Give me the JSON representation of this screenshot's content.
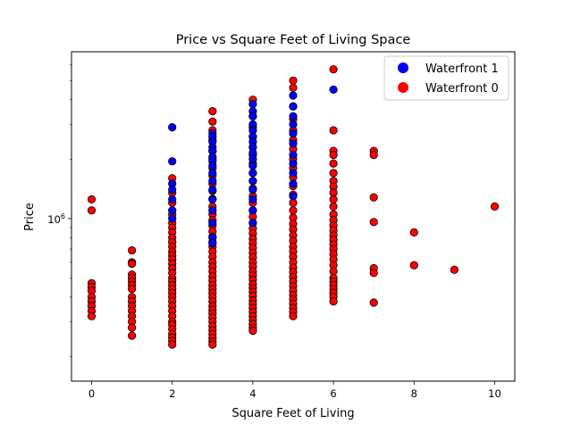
{
  "chart_data": {
    "type": "scatter",
    "title": "Price vs Square Feet of Living Space",
    "xlabel": "Square Feet of Living",
    "ylabel": "Price",
    "xlim": [
      -0.5,
      10.5
    ],
    "ylim": [
      150000,
      7000000
    ],
    "yscale": "log",
    "xticks": [
      0,
      2,
      4,
      6,
      8,
      10
    ],
    "xtick_labels": [
      "0",
      "2",
      "4",
      "6",
      "8",
      "10"
    ],
    "yticks": [
      1000000
    ],
    "ytick_base": "10",
    "ytick_exp": "6",
    "grid": false,
    "legend_position": "top-right",
    "series": [
      {
        "name": "Waterfront 1",
        "color": "#0000ff",
        "points": [
          [
            2,
            2900000
          ],
          [
            2,
            1950000
          ],
          [
            2,
            1500000
          ],
          [
            2,
            1400000
          ],
          [
            2,
            1250000
          ],
          [
            2,
            1100000
          ],
          [
            2,
            1000000
          ],
          [
            3,
            2700000
          ],
          [
            3,
            2600000
          ],
          [
            3,
            2450000
          ],
          [
            3,
            2300000
          ],
          [
            3,
            2200000
          ],
          [
            3,
            2050000
          ],
          [
            3,
            1950000
          ],
          [
            3,
            1850000
          ],
          [
            3,
            1700000
          ],
          [
            3,
            1550000
          ],
          [
            3,
            1400000
          ],
          [
            3,
            1250000
          ],
          [
            3,
            1100000
          ],
          [
            3,
            950000
          ],
          [
            3,
            800000
          ],
          [
            3,
            750000
          ],
          [
            4,
            3800000
          ],
          [
            4,
            3500000
          ],
          [
            4,
            3300000
          ],
          [
            4,
            3000000
          ],
          [
            4,
            2800000
          ],
          [
            4,
            2600000
          ],
          [
            4,
            2450000
          ],
          [
            4,
            2300000
          ],
          [
            4,
            2150000
          ],
          [
            4,
            2000000
          ],
          [
            4,
            1850000
          ],
          [
            4,
            1700000
          ],
          [
            4,
            1550000
          ],
          [
            4,
            1400000
          ],
          [
            4,
            1250000
          ],
          [
            4,
            1100000
          ],
          [
            4,
            950000
          ],
          [
            5,
            4200000
          ],
          [
            5,
            3700000
          ],
          [
            5,
            3300000
          ],
          [
            5,
            3000000
          ],
          [
            5,
            2700000
          ],
          [
            5,
            2400000
          ],
          [
            5,
            2100000
          ],
          [
            5,
            1900000
          ],
          [
            5,
            1700000
          ],
          [
            5,
            1500000
          ],
          [
            5,
            1300000
          ],
          [
            6,
            4500000
          ]
        ]
      },
      {
        "name": "Waterfront 0",
        "color": "#ff0000",
        "points": [
          [
            0,
            1250000
          ],
          [
            0,
            1100000
          ],
          [
            0,
            470000
          ],
          [
            0,
            450000
          ],
          [
            0,
            430000
          ],
          [
            0,
            400000
          ],
          [
            0,
            380000
          ],
          [
            0,
            360000
          ],
          [
            0,
            340000
          ],
          [
            0,
            320000
          ],
          [
            1,
            690000
          ],
          [
            1,
            600000
          ],
          [
            1,
            590000
          ],
          [
            1,
            520000
          ],
          [
            1,
            500000
          ],
          [
            1,
            480000
          ],
          [
            1,
            460000
          ],
          [
            1,
            440000
          ],
          [
            1,
            400000
          ],
          [
            1,
            380000
          ],
          [
            1,
            360000
          ],
          [
            1,
            340000
          ],
          [
            1,
            320000
          ],
          [
            1,
            300000
          ],
          [
            1,
            280000
          ],
          [
            1,
            255000
          ],
          [
            2,
            1600000
          ],
          [
            2,
            1350000
          ],
          [
            2,
            1200000
          ],
          [
            2,
            1050000
          ],
          [
            2,
            950000
          ],
          [
            2,
            900000
          ],
          [
            2,
            850000
          ],
          [
            2,
            800000
          ],
          [
            2,
            760000
          ],
          [
            2,
            720000
          ],
          [
            2,
            680000
          ],
          [
            2,
            650000
          ],
          [
            2,
            620000
          ],
          [
            2,
            590000
          ],
          [
            2,
            560000
          ],
          [
            2,
            530000
          ],
          [
            2,
            500000
          ],
          [
            2,
            480000
          ],
          [
            2,
            460000
          ],
          [
            2,
            440000
          ],
          [
            2,
            420000
          ],
          [
            2,
            400000
          ],
          [
            2,
            380000
          ],
          [
            2,
            360000
          ],
          [
            2,
            340000
          ],
          [
            2,
            320000
          ],
          [
            2,
            300000
          ],
          [
            2,
            290000
          ],
          [
            2,
            275000
          ],
          [
            2,
            260000
          ],
          [
            2,
            250000
          ],
          [
            2,
            240000
          ],
          [
            2,
            230000
          ],
          [
            3,
            3500000
          ],
          [
            3,
            3100000
          ],
          [
            3,
            2800000
          ],
          [
            3,
            2500000
          ],
          [
            3,
            2200000
          ],
          [
            3,
            2000000
          ],
          [
            3,
            1800000
          ],
          [
            3,
            1650000
          ],
          [
            3,
            1500000
          ],
          [
            3,
            1380000
          ],
          [
            3,
            1260000
          ],
          [
            3,
            1150000
          ],
          [
            3,
            1050000
          ],
          [
            3,
            980000
          ],
          [
            3,
            920000
          ],
          [
            3,
            860000
          ],
          [
            3,
            810000
          ],
          [
            3,
            760000
          ],
          [
            3,
            720000
          ],
          [
            3,
            680000
          ],
          [
            3,
            640000
          ],
          [
            3,
            600000
          ],
          [
            3,
            570000
          ],
          [
            3,
            540000
          ],
          [
            3,
            510000
          ],
          [
            3,
            485000
          ],
          [
            3,
            460000
          ],
          [
            3,
            440000
          ],
          [
            3,
            420000
          ],
          [
            3,
            400000
          ],
          [
            3,
            380000
          ],
          [
            3,
            360000
          ],
          [
            3,
            345000
          ],
          [
            3,
            330000
          ],
          [
            3,
            315000
          ],
          [
            3,
            300000
          ],
          [
            3,
            285000
          ],
          [
            3,
            272000
          ],
          [
            3,
            260000
          ],
          [
            3,
            248000
          ],
          [
            3,
            238000
          ],
          [
            3,
            230000
          ],
          [
            4,
            4000000
          ],
          [
            4,
            3300000
          ],
          [
            4,
            2900000
          ],
          [
            4,
            2600000
          ],
          [
            4,
            2300000
          ],
          [
            4,
            2100000
          ],
          [
            4,
            1900000
          ],
          [
            4,
            1700000
          ],
          [
            4,
            1550000
          ],
          [
            4,
            1420000
          ],
          [
            4,
            1300000
          ],
          [
            4,
            1200000
          ],
          [
            4,
            1100000
          ],
          [
            4,
            1020000
          ],
          [
            4,
            950000
          ],
          [
            4,
            890000
          ],
          [
            4,
            840000
          ],
          [
            4,
            790000
          ],
          [
            4,
            750000
          ],
          [
            4,
            710000
          ],
          [
            4,
            670000
          ],
          [
            4,
            635000
          ],
          [
            4,
            600000
          ],
          [
            4,
            570000
          ],
          [
            4,
            540000
          ],
          [
            4,
            515000
          ],
          [
            4,
            490000
          ],
          [
            4,
            465000
          ],
          [
            4,
            445000
          ],
          [
            4,
            425000
          ],
          [
            4,
            405000
          ],
          [
            4,
            385000
          ],
          [
            4,
            368000
          ],
          [
            4,
            352000
          ],
          [
            4,
            336000
          ],
          [
            4,
            320000
          ],
          [
            4,
            306000
          ],
          [
            4,
            292000
          ],
          [
            4,
            280000
          ],
          [
            4,
            270000
          ],
          [
            5,
            5000000
          ],
          [
            5,
            4600000
          ],
          [
            5,
            3700000
          ],
          [
            5,
            3200000
          ],
          [
            5,
            2800000
          ],
          [
            5,
            2500000
          ],
          [
            5,
            2250000
          ],
          [
            5,
            2000000
          ],
          [
            5,
            1800000
          ],
          [
            5,
            1620000
          ],
          [
            5,
            1460000
          ],
          [
            5,
            1320000
          ],
          [
            5,
            1200000
          ],
          [
            5,
            1100000
          ],
          [
            5,
            1010000
          ],
          [
            5,
            940000
          ],
          [
            5,
            880000
          ],
          [
            5,
            820000
          ],
          [
            5,
            770000
          ],
          [
            5,
            720000
          ],
          [
            5,
            680000
          ],
          [
            5,
            640000
          ],
          [
            5,
            600000
          ],
          [
            5,
            565000
          ],
          [
            5,
            535000
          ],
          [
            5,
            505000
          ],
          [
            5,
            480000
          ],
          [
            5,
            455000
          ],
          [
            5,
            430000
          ],
          [
            5,
            410000
          ],
          [
            5,
            390000
          ],
          [
            5,
            370000
          ],
          [
            5,
            352000
          ],
          [
            5,
            336000
          ],
          [
            5,
            320000
          ],
          [
            6,
            5700000
          ],
          [
            6,
            2800000
          ],
          [
            6,
            2200000
          ],
          [
            6,
            2100000
          ],
          [
            6,
            1900000
          ],
          [
            6,
            1700000
          ],
          [
            6,
            1550000
          ],
          [
            6,
            1450000
          ],
          [
            6,
            1350000
          ],
          [
            6,
            1250000
          ],
          [
            6,
            1150000
          ],
          [
            6,
            1050000
          ],
          [
            6,
            980000
          ],
          [
            6,
            920000
          ],
          [
            6,
            870000
          ],
          [
            6,
            820000
          ],
          [
            6,
            780000
          ],
          [
            6,
            740000
          ],
          [
            6,
            700000
          ],
          [
            6,
            660000
          ],
          [
            6,
            620000
          ],
          [
            6,
            580000
          ],
          [
            6,
            540000
          ],
          [
            6,
            500000
          ],
          [
            6,
            480000
          ],
          [
            6,
            460000
          ],
          [
            6,
            440000
          ],
          [
            6,
            420000
          ],
          [
            6,
            400000
          ],
          [
            6,
            380000
          ],
          [
            7,
            2200000
          ],
          [
            7,
            2100000
          ],
          [
            7,
            1280000
          ],
          [
            7,
            960000
          ],
          [
            7,
            560000
          ],
          [
            7,
            530000
          ],
          [
            7,
            375000
          ],
          [
            8,
            850000
          ],
          [
            8,
            580000
          ],
          [
            9,
            550000
          ],
          [
            10,
            1150000
          ]
        ]
      }
    ]
  }
}
